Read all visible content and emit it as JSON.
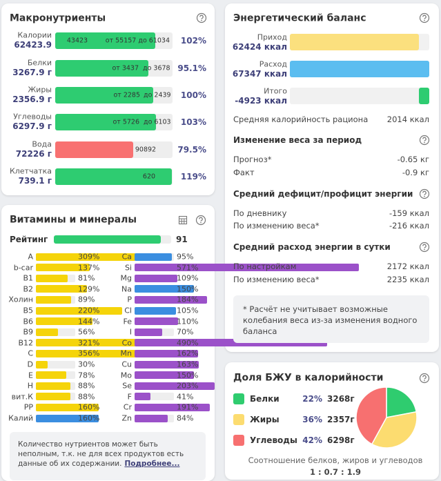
{
  "macros": {
    "title": "Макронутриенты",
    "rows": [
      {
        "name": "Калории",
        "amount": "62423.9",
        "bar_texts": [
          "43423",
          "от 55157 до 61034"
        ],
        "percent": {
          "value": 102,
          "label": "102%"
        },
        "color": "#2ecc71"
      },
      {
        "name": "Белки",
        "amount": "3267.9 г",
        "bar_texts": [
          "от 3437",
          "до 3678"
        ],
        "percent": {
          "value": 95.1,
          "label": "95.1%"
        },
        "color": "#2ecc71"
      },
      {
        "name": "Жиры",
        "amount": "2356.9 г",
        "bar_texts": [
          "от 2285",
          "до 2439"
        ],
        "percent": {
          "value": 100,
          "label": "100%"
        },
        "color": "#2ecc71"
      },
      {
        "name": "Углеводы",
        "amount": "6297.9 г",
        "bar_texts": [
          "от 5726",
          "до 6103"
        ],
        "percent": {
          "value": 103,
          "label": "103%"
        },
        "color": "#2ecc71"
      },
      {
        "name": "Вода",
        "amount": "72226 г",
        "bar_texts": [
          "90892"
        ],
        "percent": {
          "value": 79.5,
          "label": "79.5%"
        },
        "color": "#f87171"
      },
      {
        "name": "Клетчатка",
        "amount": "739.1 г",
        "bar_texts": [
          "620"
        ],
        "percent": {
          "value": 119,
          "label": "119%"
        },
        "color": "#2ecc71"
      }
    ]
  },
  "vitamins": {
    "title": "Витамины и минералы",
    "rating_label": "Рейтинг",
    "rating": 91,
    "rating_color": "#2ecc71",
    "left": [
      {
        "name": "A",
        "percent": {
          "value": 309,
          "label": "309%"
        },
        "color": "#f5d40a"
      },
      {
        "name": "b-car",
        "percent": {
          "value": 137,
          "label": "137%"
        },
        "color": "#f5d40a"
      },
      {
        "name": "B1",
        "percent": {
          "value": 81,
          "label": "81%"
        },
        "color": "#f5d40a"
      },
      {
        "name": "B2",
        "percent": {
          "value": 129,
          "label": "129%"
        },
        "color": "#f5d40a"
      },
      {
        "name": "Холин",
        "percent": {
          "value": 89,
          "label": "89%"
        },
        "color": "#f5d40a"
      },
      {
        "name": "B5",
        "percent": {
          "value": 220,
          "label": "220%"
        },
        "color": "#f5d40a"
      },
      {
        "name": "B6",
        "percent": {
          "value": 144,
          "label": "144%"
        },
        "color": "#f5d40a"
      },
      {
        "name": "B9",
        "percent": {
          "value": 56,
          "label": "56%"
        },
        "color": "#f5d40a"
      },
      {
        "name": "B12",
        "percent": {
          "value": 321,
          "label": "321%"
        },
        "color": "#f5d40a"
      },
      {
        "name": "C",
        "percent": {
          "value": 356,
          "label": "356%"
        },
        "color": "#f5d40a"
      },
      {
        "name": "D",
        "percent": {
          "value": 30,
          "label": "30%"
        },
        "color": "#f5d40a"
      },
      {
        "name": "E",
        "percent": {
          "value": 78,
          "label": "78%"
        },
        "color": "#f5d40a"
      },
      {
        "name": "H",
        "percent": {
          "value": 88,
          "label": "88%"
        },
        "color": "#f5d40a"
      },
      {
        "name": "вит.К",
        "percent": {
          "value": 88,
          "label": "88%"
        },
        "color": "#f5d40a"
      },
      {
        "name": "PP",
        "percent": {
          "value": 160,
          "label": "160%"
        },
        "color": "#f5d40a"
      },
      {
        "name": "Калий",
        "percent": {
          "value": 160,
          "label": "160%"
        },
        "color": "#3b8ee0"
      }
    ],
    "right": [
      {
        "name": "Ca",
        "percent": {
          "value": 95,
          "label": "95%"
        },
        "color": "#3b8ee0"
      },
      {
        "name": "Si",
        "percent": {
          "value": 571,
          "label": "571%"
        },
        "color": "#9b51c9"
      },
      {
        "name": "Mg",
        "percent": {
          "value": 109,
          "label": "109%"
        },
        "color": "#9b51c9"
      },
      {
        "name": "Na",
        "percent": {
          "value": 150,
          "label": "150%"
        },
        "color": "#3b8ee0"
      },
      {
        "name": "P",
        "percent": {
          "value": 184,
          "label": "184%"
        },
        "color": "#9b51c9"
      },
      {
        "name": "Cl",
        "percent": {
          "value": 105,
          "label": "105%"
        },
        "color": "#3b8ee0"
      },
      {
        "name": "Fe",
        "percent": {
          "value": 110,
          "label": "110%"
        },
        "color": "#9b51c9"
      },
      {
        "name": "I",
        "percent": {
          "value": 70,
          "label": "70%"
        },
        "color": "#9b51c9"
      },
      {
        "name": "Co",
        "percent": {
          "value": 490,
          "label": "490%"
        },
        "color": "#9b51c9"
      },
      {
        "name": "Mn",
        "percent": {
          "value": 162,
          "label": "162%"
        },
        "color": "#9b51c9"
      },
      {
        "name": "Cu",
        "percent": {
          "value": 163,
          "label": "163%"
        },
        "color": "#9b51c9"
      },
      {
        "name": "Mo",
        "percent": {
          "value": 150,
          "label": "150%"
        },
        "color": "#9b51c9"
      },
      {
        "name": "Se",
        "percent": {
          "value": 203,
          "label": "203%"
        },
        "color": "#9b51c9"
      },
      {
        "name": "F",
        "percent": {
          "value": 41,
          "label": "41%"
        },
        "color": "#9b51c9"
      },
      {
        "name": "Cr",
        "percent": {
          "value": 191,
          "label": "191%"
        },
        "color": "#9b51c9"
      },
      {
        "name": "Zn",
        "percent": {
          "value": 84,
          "label": "84%"
        },
        "color": "#9b51c9"
      }
    ],
    "note": "Количество нутриентов может быть неполным, т.к. не для всех продуктов есть данные об их содержании.",
    "link": "Подробнее..."
  },
  "energy": {
    "title": "Энергетический баланс",
    "bars": [
      {
        "name": "Приход",
        "value": 62424,
        "label": "62424 ккал",
        "color": "#fbe07e"
      },
      {
        "name": "Расход",
        "value": 67347,
        "label": "67347 ккал",
        "color": "#5bbdf0"
      },
      {
        "name": "Итого",
        "value": -4923,
        "label": "-4923 ккал",
        "color": "#2ecc71"
      }
    ],
    "avg_label": "Средняя калорийность рациона",
    "avg_value": "2014 ккал",
    "sections": [
      {
        "title": "Изменение веса за период",
        "rows": [
          [
            "Прогноз*",
            "-0.65 кг"
          ],
          [
            "Факт",
            "-0.9 кг"
          ]
        ]
      },
      {
        "title": "Средний дефицит/профицит энергии",
        "rows": [
          [
            "По дневнику",
            "-159 ккал"
          ],
          [
            "По изменению веса*",
            "-216 ккал"
          ]
        ]
      },
      {
        "title": "Средний расход энергии в сутки",
        "rows": [
          [
            "По настройкам",
            "2172 ккал"
          ],
          [
            "По изменению веса*",
            "2235 ккал"
          ]
        ]
      }
    ],
    "note": "* Расчёт не учитывает возможные колебания веса из-за изменения водного баланса"
  },
  "bju": {
    "title": "Доля БЖУ в калорийности",
    "items": [
      {
        "name": "Белки",
        "percent": {
          "value": 22,
          "label": "22%"
        },
        "grams": "3268г",
        "color": "#2fcc6f"
      },
      {
        "name": "Жиры",
        "percent": {
          "value": 36,
          "label": "36%"
        },
        "grams": "2357г",
        "color": "#fcdc70"
      },
      {
        "name": "Углеводы",
        "percent": {
          "value": 42,
          "label": "42%"
        },
        "grams": "6298г",
        "color": "#f77070"
      }
    ],
    "footer": "Соотношение белков, жиров и углеводов",
    "ratio": "1 : 0.7 : 1.9"
  }
}
